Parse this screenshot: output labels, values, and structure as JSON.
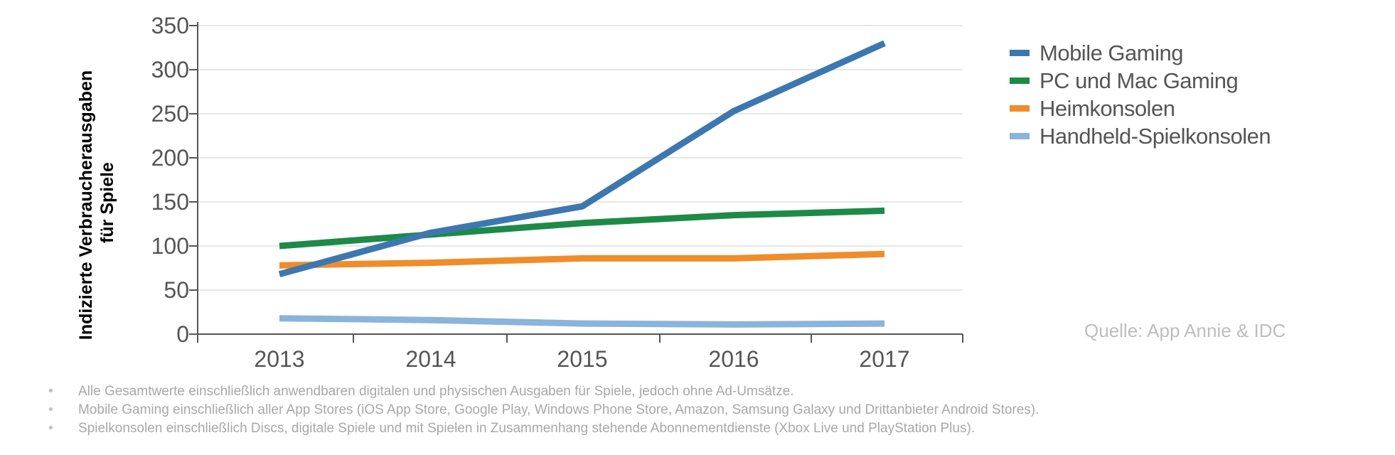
{
  "chart_data": {
    "type": "line",
    "categories": [
      "2013",
      "2014",
      "2015",
      "2016",
      "2017"
    ],
    "ylabel": "Indizierte Verbraucherausgaben für Spiele",
    "ylabel_lines": [
      "Indizierte Verbraucherausgaben",
      "für Spiele"
    ],
    "ylim": [
      0,
      350
    ],
    "yticks": [
      0,
      50,
      100,
      150,
      200,
      250,
      300,
      350
    ],
    "grid": true,
    "legend_position": "right",
    "series": [
      {
        "name": "Mobile Gaming",
        "color": "#3d77b0",
        "values": [
          68,
          115,
          145,
          253,
          330
        ]
      },
      {
        "name": "PC und Mac Gaming",
        "color": "#1d8a48",
        "values": [
          100,
          113,
          126,
          135,
          140
        ]
      },
      {
        "name": "Heimkonsolen",
        "color": "#f08c2a",
        "values": [
          78,
          81,
          86,
          86,
          91
        ]
      },
      {
        "name": "Handheld-Spielkonsolen",
        "color": "#8ab4d9",
        "values": [
          18,
          16,
          12,
          11,
          12
        ]
      }
    ]
  },
  "source": "Quelle: App Annie & IDC",
  "notes": [
    "Alle Gesamtwerte einschließlich anwendbaren digitalen und physischen Ausgaben für Spiele, jedoch ohne Ad-Umsätze.",
    "Mobile Gaming einschließlich aller App Stores (iOS App Store, Google Play, Windows Phone Store, Amazon, Samsung Galaxy und Drittanbieter Android Stores).",
    "Spielkonsolen einschließlich Discs, digitale Spiele und mit Spielen in Zusammenhang stehende Abonnementdienste (Xbox Live und PlayStation Plus)."
  ],
  "bullet": "•"
}
